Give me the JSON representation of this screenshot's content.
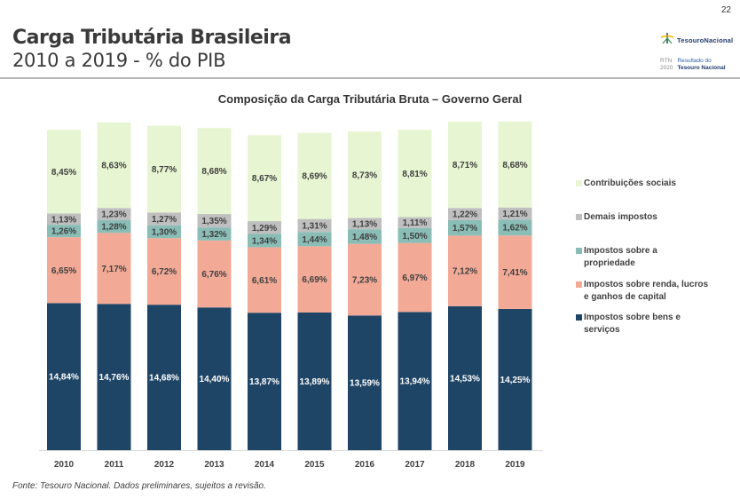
{
  "header": {
    "title": "Carga Tributária Brasileira",
    "subtitle": "2010 a 2019 - % do PIB",
    "page_number": "22"
  },
  "logo": {
    "name": "TesouroNacional",
    "rtn_line1": "RTN",
    "rtn_line2": "2020",
    "report_line1": "Resultado do",
    "report_line2": "Tesouro Nacional"
  },
  "source_note": "Fonte: Tesouro Nacional. Dados preliminares, sujeitos a revisão.",
  "chart_data": {
    "type": "bar",
    "stacked": true,
    "title": "Composição da Carga Tributária Bruta – Governo Geral",
    "xlabel": "",
    "ylabel": "% do PIB",
    "categories": [
      "2010",
      "2011",
      "2012",
      "2013",
      "2014",
      "2015",
      "2016",
      "2017",
      "2018",
      "2019"
    ],
    "legend_position": "right",
    "grid": false,
    "series": [
      {
        "name": "Impostos sobre bens e serviços",
        "color": "#1f4566",
        "label_color": "#ffffff",
        "values": [
          14.84,
          14.76,
          14.68,
          14.4,
          13.87,
          13.89,
          13.59,
          13.94,
          14.53,
          14.25
        ],
        "labels": [
          "14,84%",
          "14,76%",
          "14,68%",
          "14,40%",
          "13,87%",
          "13,89%",
          "13,59%",
          "13,94%",
          "14,53%",
          "14,25%"
        ]
      },
      {
        "name": "Impostos sobre renda, lucros e ganhos de capital",
        "color": "#f2aa96",
        "label_color": "#404040",
        "values": [
          6.65,
          7.17,
          6.72,
          6.76,
          6.61,
          6.69,
          7.23,
          6.97,
          7.12,
          7.41
        ],
        "labels": [
          "6,65%",
          "7,17%",
          "6,72%",
          "6,76%",
          "6,61%",
          "6,69%",
          "7,23%",
          "6,97%",
          "7,12%",
          "7,41%"
        ]
      },
      {
        "name": "Impostos sobre a propriedade",
        "color": "#89bdb6",
        "label_color": "#404040",
        "values": [
          1.26,
          1.28,
          1.3,
          1.32,
          1.34,
          1.44,
          1.48,
          1.5,
          1.57,
          1.62
        ],
        "labels": [
          "1,26%",
          "1,28%",
          "1,30%",
          "1,32%",
          "1,34%",
          "1,44%",
          "1,48%",
          "1,50%",
          "1,57%",
          "1,62%"
        ]
      },
      {
        "name": "Demais impostos",
        "color": "#bfbfbf",
        "label_color": "#404040",
        "values": [
          1.13,
          1.23,
          1.27,
          1.35,
          1.29,
          1.31,
          1.13,
          1.11,
          1.22,
          1.21
        ],
        "labels": [
          "1,13%",
          "1,23%",
          "1,27%",
          "1,35%",
          "1,29%",
          "1,31%",
          "1,13%",
          "1,11%",
          "1,22%",
          "1,21%"
        ]
      },
      {
        "name": "Contribuições sociais",
        "color": "#e8f5d2",
        "label_color": "#404040",
        "values": [
          8.45,
          8.63,
          8.77,
          8.68,
          8.67,
          8.69,
          8.73,
          8.81,
          8.71,
          8.68
        ],
        "labels": [
          "8,45%",
          "8,63%",
          "8,77%",
          "8,68%",
          "8,67%",
          "8,69%",
          "8,73%",
          "8,81%",
          "8,71%",
          "8,68%"
        ]
      }
    ],
    "legend": [
      "Contribuições sociais",
      "Demais impostos",
      "Impostos sobre a propriedade",
      "Impostos sobre renda, lucros e ganhos de capital",
      "Impostos sobre bens e serviços"
    ]
  }
}
